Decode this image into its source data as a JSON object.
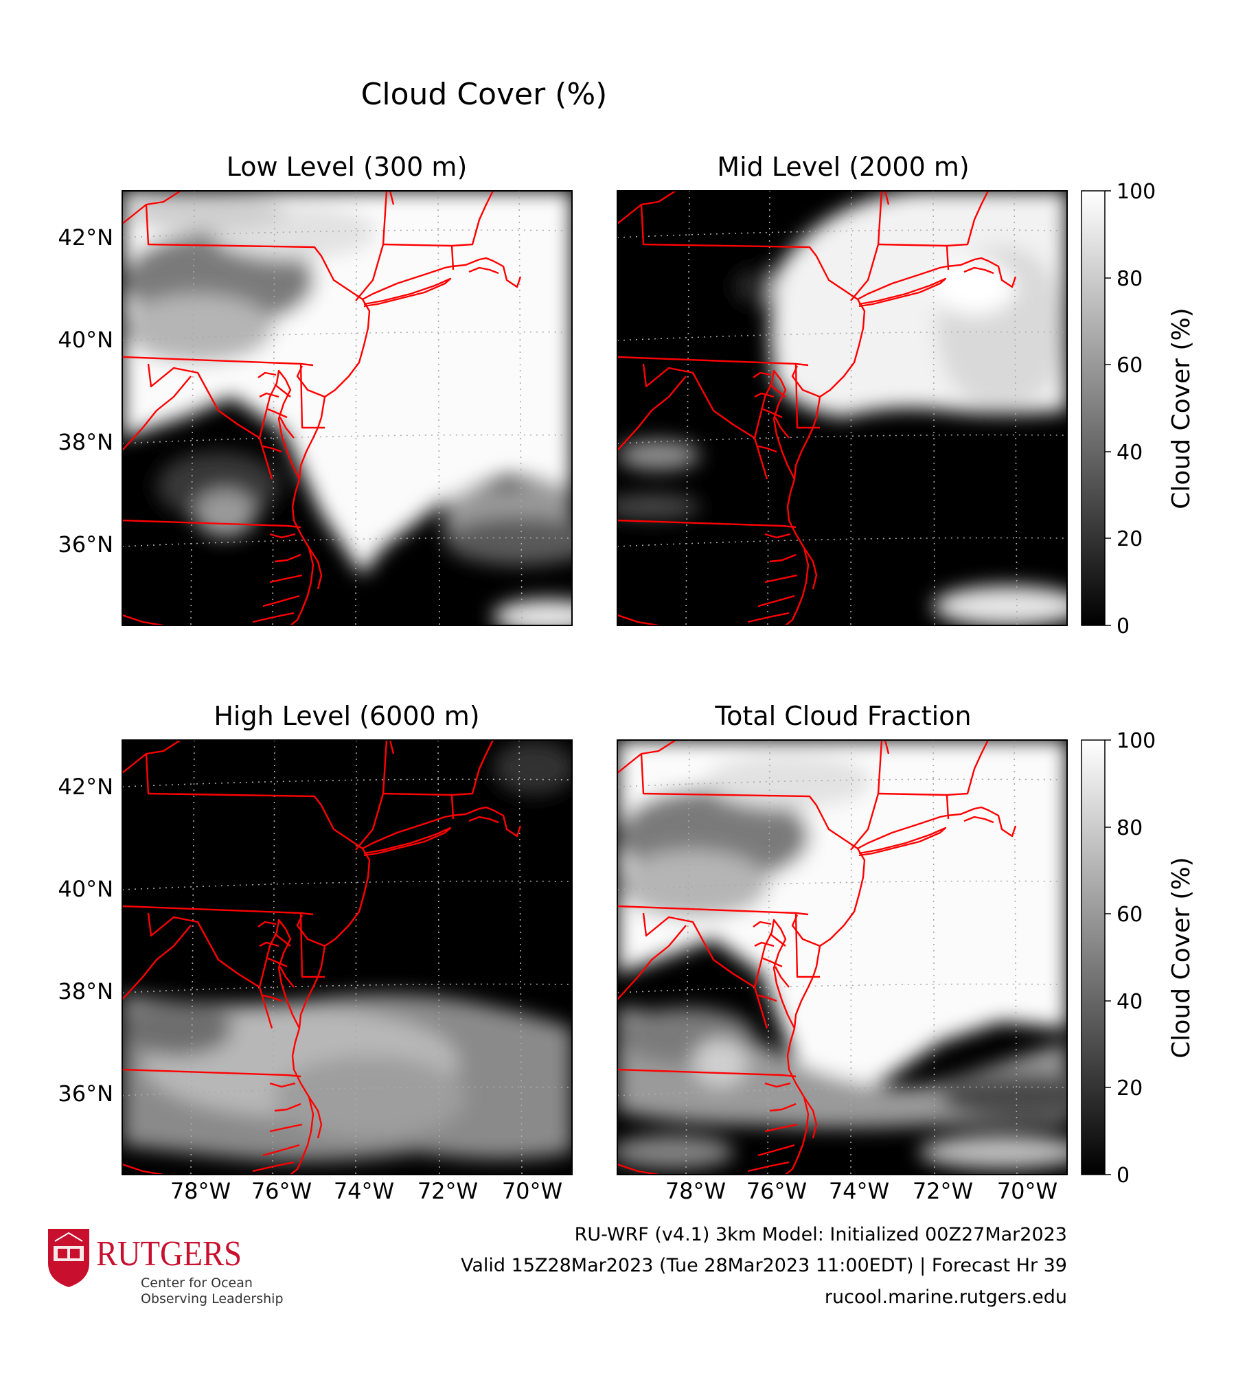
{
  "figure_title": "Cloud Cover (%)",
  "panels": [
    {
      "title": "Low Level (300 m)"
    },
    {
      "title": "Mid Level (2000 m)"
    },
    {
      "title": "High Level (6000 m)"
    },
    {
      "title": "Total Cloud Fraction"
    }
  ],
  "lat_labels": [
    "42°N",
    "40°N",
    "38°N",
    "36°N"
  ],
  "lon_labels": [
    "78°W",
    "76°W",
    "74°W",
    "72°W",
    "70°W"
  ],
  "colorbar": {
    "label": "Cloud Cover (%)",
    "ticks": [
      "0",
      "20",
      "40",
      "60",
      "80",
      "100"
    ],
    "colormap": [
      "#000000",
      "#ffffff"
    ]
  },
  "footer": {
    "line1": "RU-WRF (v4.1) 3km Model: Initialized 00Z27Mar2023",
    "line2": "Valid 15Z28Mar2023 (Tue 28Mar2023 11:00EDT) | Forecast Hr 39",
    "line3": "rucool.marine.rutgers.edu"
  },
  "logo": {
    "name": "RUTGERS",
    "subtitle1": "Center for Ocean",
    "subtitle2": "Observing Leadership"
  },
  "colors": {
    "state_borders": "#ff0000",
    "brand": "#c8102e",
    "graticule": "#aaaaaa"
  }
}
